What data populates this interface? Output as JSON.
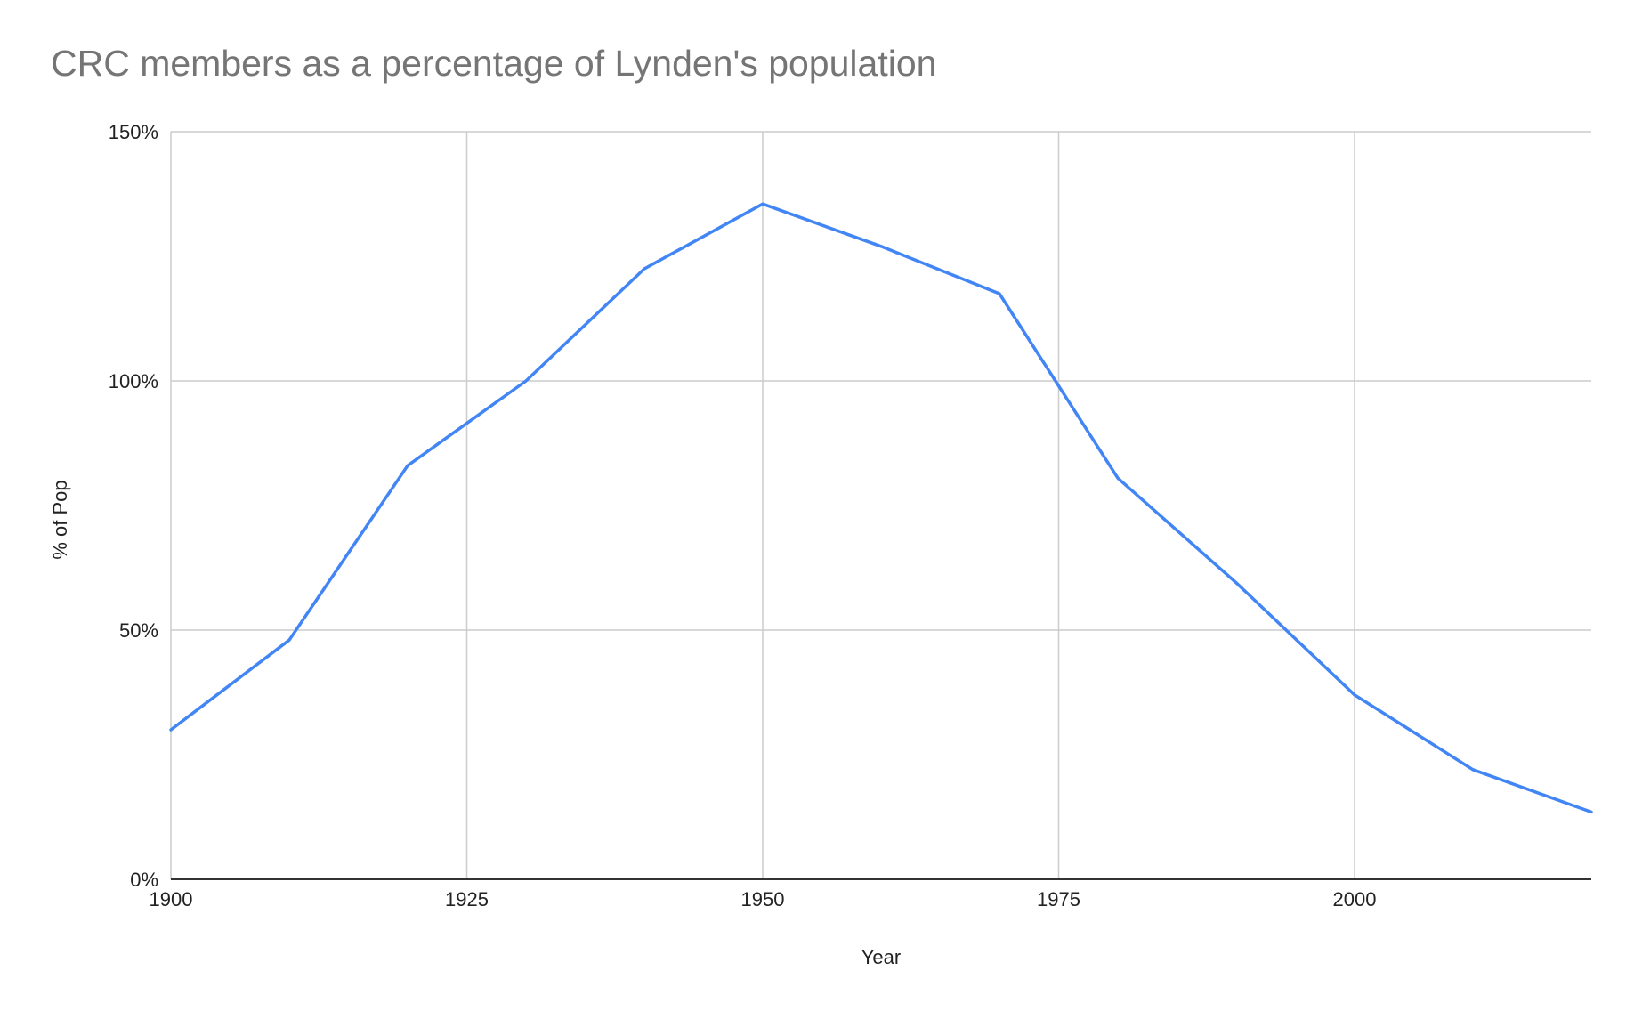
{
  "chart_data": {
    "type": "line",
    "title": "CRC members as a percentage of Lynden's population",
    "xlabel": "Year",
    "ylabel": "% of Pop",
    "xlim": [
      1900,
      2020
    ],
    "ylim": [
      0,
      150
    ],
    "x_ticks": [
      1900,
      1925,
      1950,
      1975,
      2000
    ],
    "y_ticks": [
      0,
      50,
      100,
      150
    ],
    "y_tick_labels": [
      "0%",
      "50%",
      "100%",
      "150%"
    ],
    "grid": true,
    "legend": "none",
    "line_color": "#4285f4",
    "grid_color": "#cccccc",
    "series": [
      {
        "x": [
          1900,
          1910,
          1920,
          1930,
          1940,
          1950,
          1960,
          1970,
          1980,
          1990,
          2000,
          2010,
          2020
        ],
        "values": [
          30,
          48,
          83,
          100,
          122.5,
          135.5,
          127,
          117.5,
          80.5,
          59.5,
          37,
          22,
          13.5
        ]
      }
    ]
  }
}
